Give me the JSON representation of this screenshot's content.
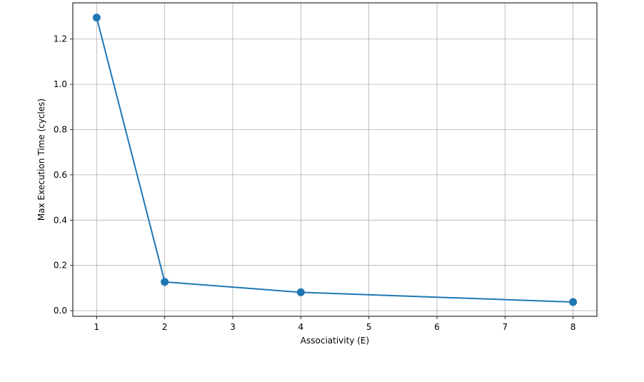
{
  "chart_data": {
    "type": "line",
    "xlabel": "Associativity (E)",
    "ylabel": "Max Execution Time (cycles)",
    "xlim": [
      0.65,
      8.35
    ],
    "ylim": [
      -0.025,
      1.36
    ],
    "xticks": [
      1,
      2,
      3,
      4,
      5,
      6,
      7,
      8
    ],
    "yticks": [
      0.0,
      0.2,
      0.4,
      0.6,
      0.8,
      1.0,
      1.2
    ],
    "grid": true,
    "series": [
      {
        "color": "#1f77b4",
        "marker": "circle",
        "x": [
          1,
          2,
          4,
          8
        ],
        "y": [
          1.295,
          0.127,
          0.081,
          0.038
        ]
      }
    ]
  }
}
